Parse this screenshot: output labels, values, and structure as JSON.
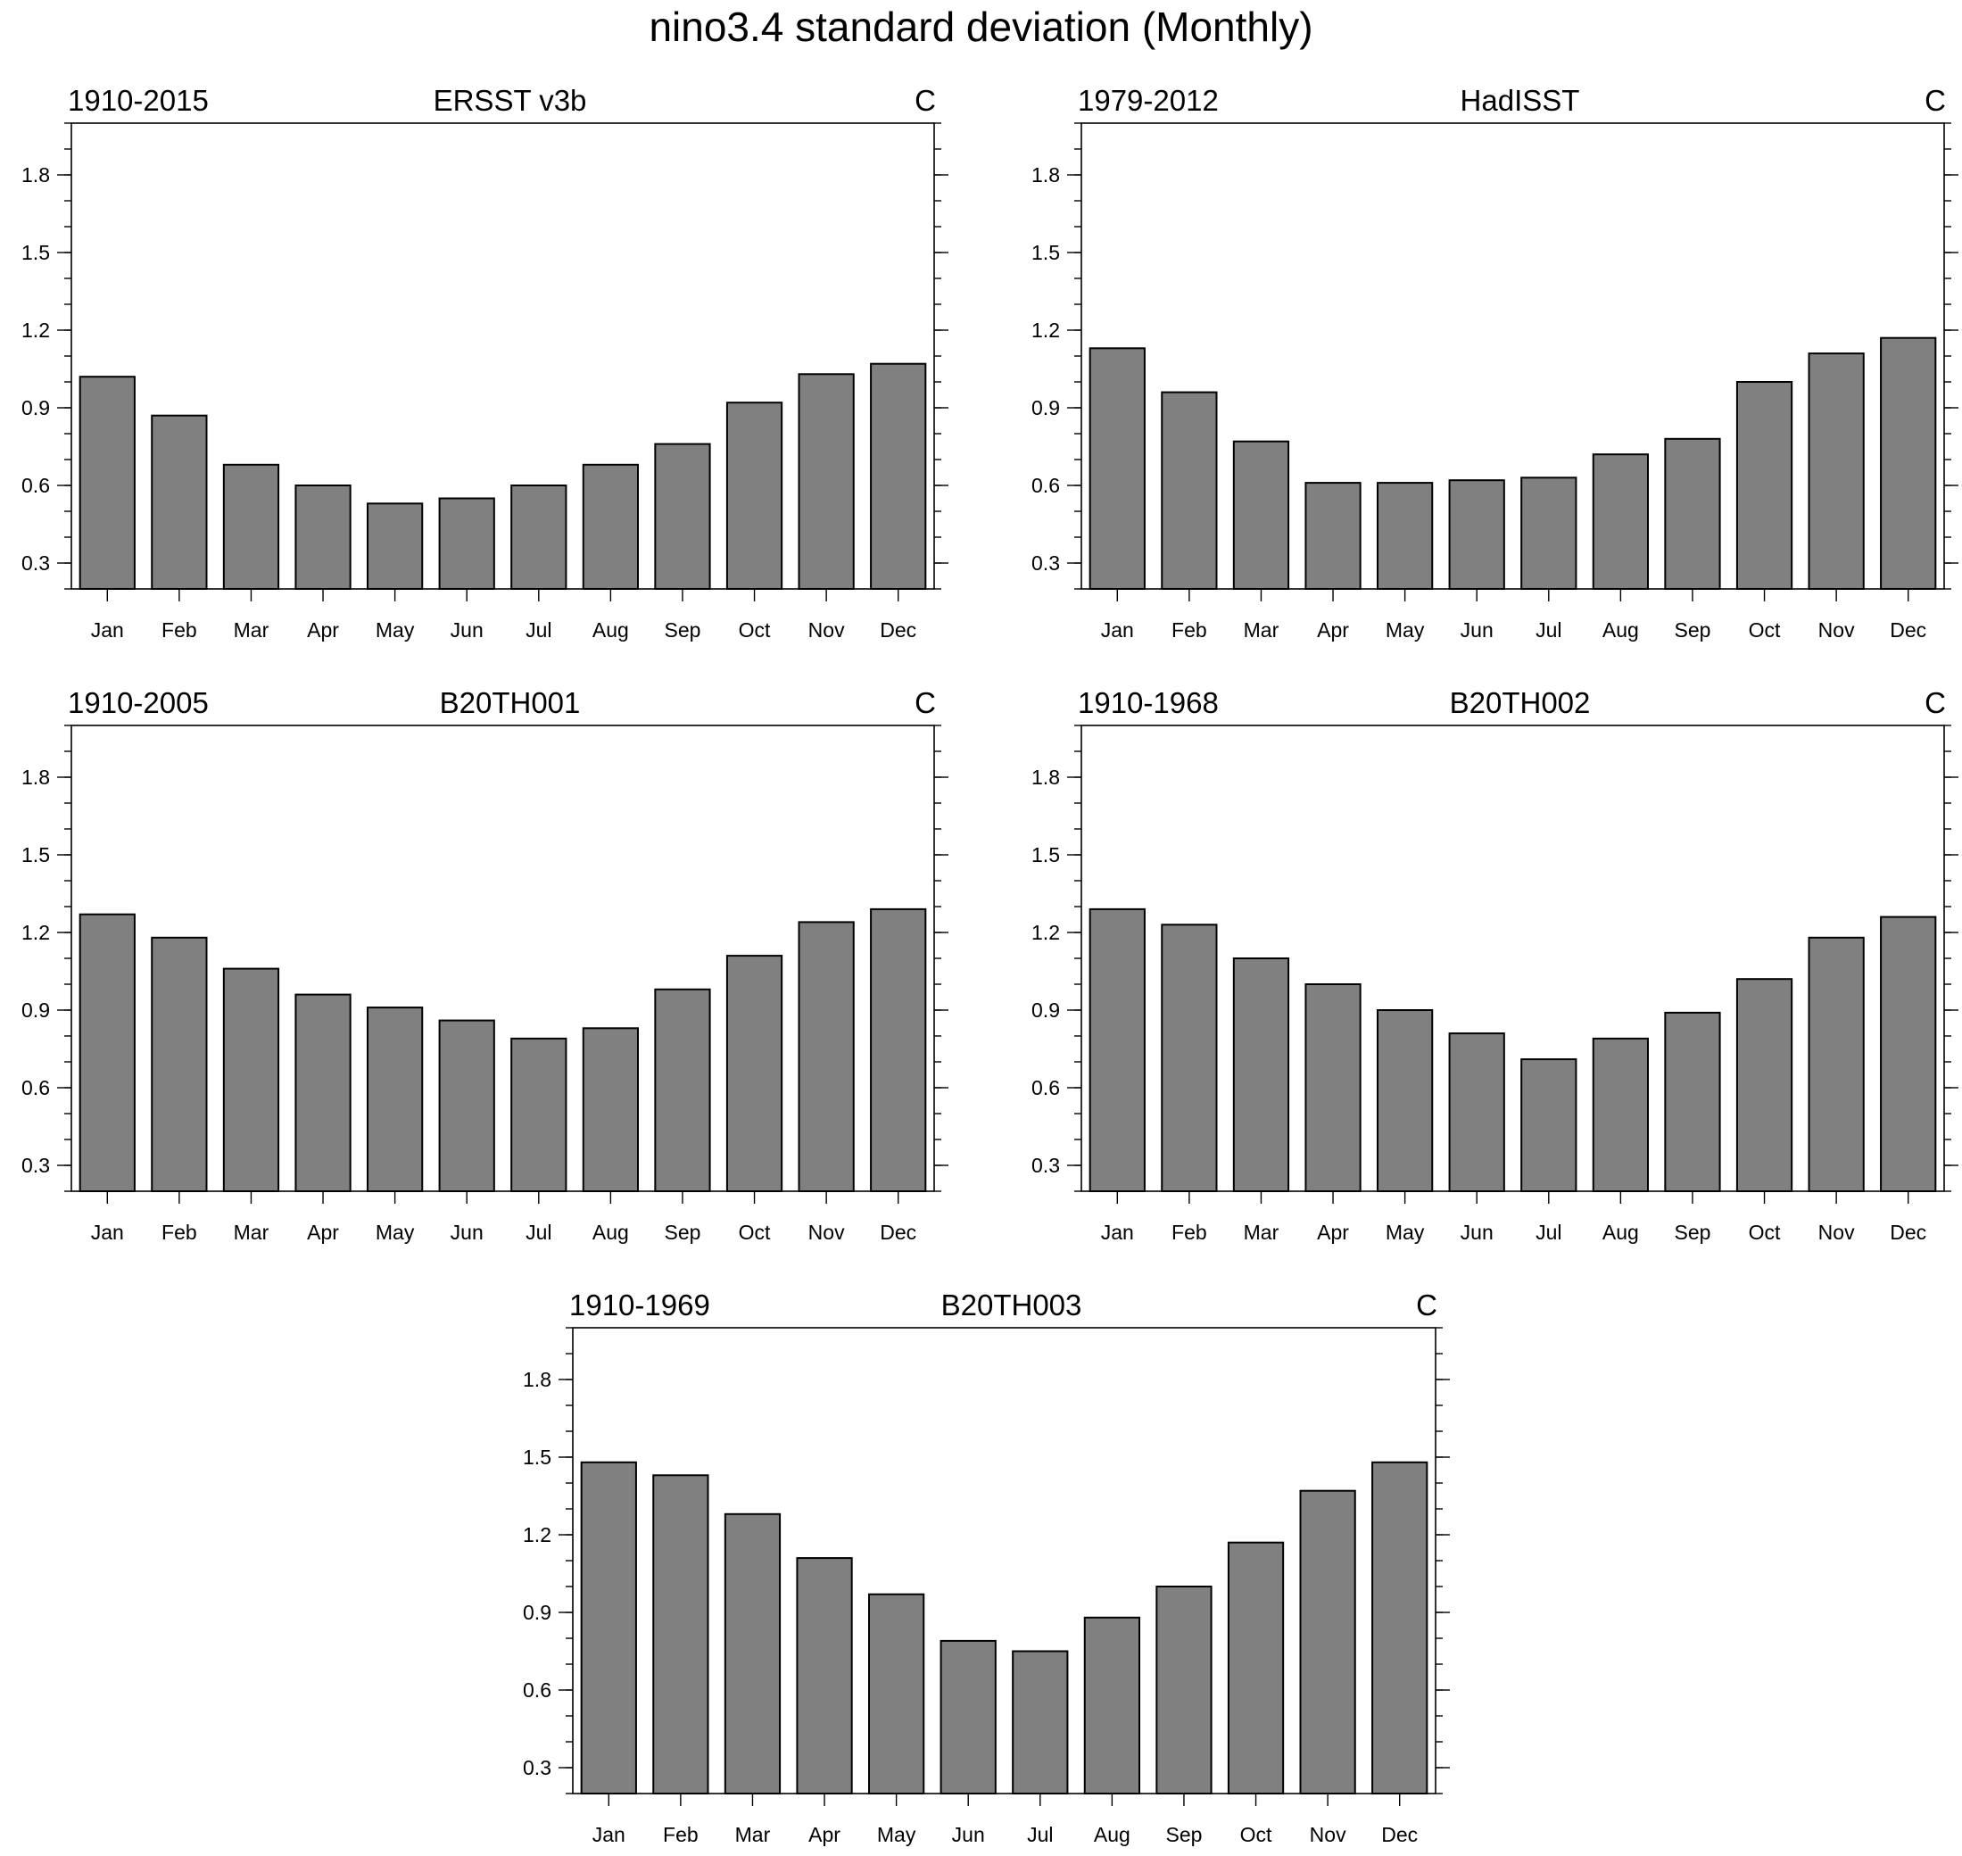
{
  "figure_title": "nino3.4 standard deviation (Monthly)",
  "chart_data": [
    {
      "type": "bar",
      "title": "ERSST v3b",
      "left_label": "1910-2015",
      "right_label": "C",
      "categories": [
        "Jan",
        "Feb",
        "Mar",
        "Apr",
        "May",
        "Jun",
        "Jul",
        "Aug",
        "Sep",
        "Oct",
        "Nov",
        "Dec"
      ],
      "values": [
        1.02,
        0.87,
        0.68,
        0.6,
        0.53,
        0.55,
        0.6,
        0.68,
        0.76,
        0.92,
        1.03,
        1.07
      ],
      "ylim": [
        0.2,
        2.0
      ],
      "yticks": [
        "0.3",
        "0.6",
        "0.9",
        "1.2",
        "1.5",
        "1.8"
      ],
      "grid": false
    },
    {
      "type": "bar",
      "title": "HadISST",
      "left_label": "1979-2012",
      "right_label": "C",
      "categories": [
        "Jan",
        "Feb",
        "Mar",
        "Apr",
        "May",
        "Jun",
        "Jul",
        "Aug",
        "Sep",
        "Oct",
        "Nov",
        "Dec"
      ],
      "values": [
        1.13,
        0.96,
        0.77,
        0.61,
        0.61,
        0.62,
        0.63,
        0.72,
        0.78,
        1.0,
        1.11,
        1.17
      ],
      "ylim": [
        0.2,
        2.0
      ],
      "yticks": [
        "0.3",
        "0.6",
        "0.9",
        "1.2",
        "1.5",
        "1.8"
      ],
      "grid": false
    },
    {
      "type": "bar",
      "title": "B20TH001",
      "left_label": "1910-2005",
      "right_label": "C",
      "categories": [
        "Jan",
        "Feb",
        "Mar",
        "Apr",
        "May",
        "Jun",
        "Jul",
        "Aug",
        "Sep",
        "Oct",
        "Nov",
        "Dec"
      ],
      "values": [
        1.27,
        1.18,
        1.06,
        0.96,
        0.91,
        0.86,
        0.79,
        0.83,
        0.98,
        1.11,
        1.24,
        1.29
      ],
      "ylim": [
        0.2,
        2.0
      ],
      "yticks": [
        "0.3",
        "0.6",
        "0.9",
        "1.2",
        "1.5",
        "1.8"
      ],
      "grid": false
    },
    {
      "type": "bar",
      "title": "B20TH002",
      "left_label": "1910-1968",
      "right_label": "C",
      "categories": [
        "Jan",
        "Feb",
        "Mar",
        "Apr",
        "May",
        "Jun",
        "Jul",
        "Aug",
        "Sep",
        "Oct",
        "Nov",
        "Dec"
      ],
      "values": [
        1.29,
        1.23,
        1.1,
        1.0,
        0.9,
        0.81,
        0.71,
        0.79,
        0.89,
        1.02,
        1.18,
        1.26
      ],
      "ylim": [
        0.2,
        2.0
      ],
      "yticks": [
        "0.3",
        "0.6",
        "0.9",
        "1.2",
        "1.5",
        "1.8"
      ],
      "grid": false
    },
    {
      "type": "bar",
      "title": "B20TH003",
      "left_label": "1910-1969",
      "right_label": "C",
      "categories": [
        "Jan",
        "Feb",
        "Mar",
        "Apr",
        "May",
        "Jun",
        "Jul",
        "Aug",
        "Sep",
        "Oct",
        "Nov",
        "Dec"
      ],
      "values": [
        1.48,
        1.43,
        1.28,
        1.11,
        0.97,
        0.79,
        0.75,
        0.88,
        1.0,
        1.17,
        1.37,
        1.48
      ],
      "ylim": [
        0.2,
        2.0
      ],
      "yticks": [
        "0.3",
        "0.6",
        "0.9",
        "1.2",
        "1.5",
        "1.8"
      ],
      "grid": false
    }
  ]
}
